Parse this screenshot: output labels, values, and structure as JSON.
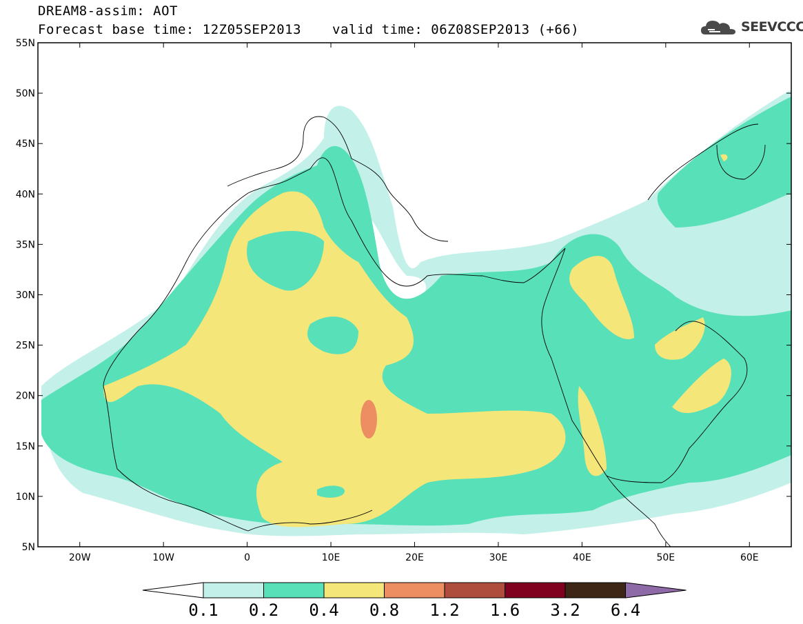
{
  "title": {
    "line1": "DREAM8-assim: AOT",
    "line2": "Forecast base time: 12Z05SEP2013",
    "valid": "valid time: 06Z08SEP2013 (+66)"
  },
  "logo": {
    "text": "SEEVCCC",
    "icon": "cloud-icon"
  },
  "map": {
    "lon_range": [
      -25,
      65
    ],
    "lat_range": [
      5,
      55
    ],
    "lat_ticks": [
      {
        "value": 55,
        "label": "55N"
      },
      {
        "value": 50,
        "label": "50N"
      },
      {
        "value": 45,
        "label": "45N"
      },
      {
        "value": 40,
        "label": "40N"
      },
      {
        "value": 35,
        "label": "35N"
      },
      {
        "value": 30,
        "label": "30N"
      },
      {
        "value": 25,
        "label": "25N"
      },
      {
        "value": 20,
        "label": "20N"
      },
      {
        "value": 15,
        "label": "15N"
      },
      {
        "value": 10,
        "label": "10N"
      },
      {
        "value": 5,
        "label": "5N"
      }
    ],
    "lon_ticks": [
      {
        "value": -20,
        "label": "20W"
      },
      {
        "value": -10,
        "label": "10W"
      },
      {
        "value": 0,
        "label": "0"
      },
      {
        "value": 10,
        "label": "10E"
      },
      {
        "value": 20,
        "label": "20E"
      },
      {
        "value": 30,
        "label": "30E"
      },
      {
        "value": 40,
        "label": "40E"
      },
      {
        "value": 50,
        "label": "50E"
      },
      {
        "value": 60,
        "label": "60E"
      }
    ]
  },
  "colorbar": {
    "levels": [
      "0.1",
      "0.2",
      "0.4",
      "0.8",
      "1.2",
      "1.6",
      "3.2",
      "6.4"
    ],
    "colors": [
      "#c4f0ea",
      "#58e0b8",
      "#f5e67a",
      "#ec8e62",
      "#ae4d3e",
      "#800020",
      "#3d2616",
      "#8e6aa6"
    ]
  }
}
